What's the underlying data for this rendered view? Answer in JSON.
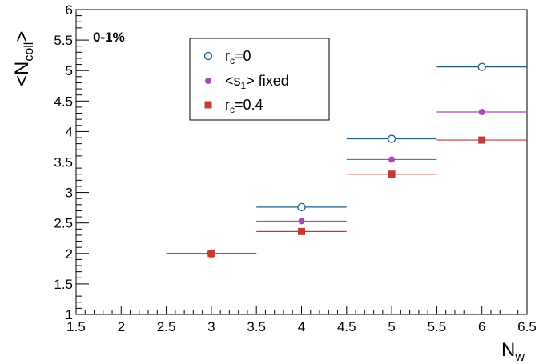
{
  "chart_data": {
    "type": "scatter",
    "annotation": "0-1%",
    "xlabel": {
      "main": "N",
      "sub": "w"
    },
    "ylabel": {
      "pre": "<N",
      "sub": "coll",
      "post": ">"
    },
    "xlim": [
      1.5,
      6.5
    ],
    "ylim": [
      1,
      6
    ],
    "xticks": [
      "1.5",
      "2",
      "2.5",
      "3",
      "3.5",
      "4",
      "4.5",
      "5",
      "5.5",
      "6",
      "6.5"
    ],
    "yticks": [
      "1",
      "1.5",
      "2",
      "2.5",
      "3",
      "3.5",
      "4",
      "4.5",
      "5",
      "5.5",
      "6"
    ],
    "grid": false,
    "legend_position": "top-left",
    "series": [
      {
        "key": "rc0",
        "name": {
          "pre": "r",
          "sub": "c",
          "post": "=0"
        },
        "marker": "open-circle",
        "color": "#1b5e86",
        "points": [
          {
            "x": 3,
            "y": 2.0,
            "xerr": 0.5
          },
          {
            "x": 4,
            "y": 2.76,
            "xerr": 0.5
          },
          {
            "x": 5,
            "y": 3.88,
            "xerr": 0.5
          },
          {
            "x": 6,
            "y": 5.06,
            "xerr": 0.5
          }
        ]
      },
      {
        "key": "s1fixed",
        "name": {
          "pre": "<s",
          "sub": "1",
          "post": "> fixed"
        },
        "marker": "filled-circle",
        "color": "#a64cb5",
        "points": [
          {
            "x": 3,
            "y": 2.0,
            "xerr": 0.5
          },
          {
            "x": 4,
            "y": 2.53,
            "xerr": 0.5
          },
          {
            "x": 5,
            "y": 3.54,
            "xerr": 0.5
          },
          {
            "x": 6,
            "y": 4.32,
            "xerr": 0.5
          }
        ]
      },
      {
        "key": "rc04",
        "name": {
          "pre": "r",
          "sub": "c",
          "post": "=0.4"
        },
        "marker": "filled-square",
        "color": "#c23b34",
        "points": [
          {
            "x": 3,
            "y": 2.0,
            "xerr": 0.5
          },
          {
            "x": 4,
            "y": 2.36,
            "xerr": 0.5
          },
          {
            "x": 5,
            "y": 3.3,
            "xerr": 0.5
          },
          {
            "x": 6,
            "y": 3.86,
            "xerr": 0.5
          }
        ]
      }
    ]
  }
}
